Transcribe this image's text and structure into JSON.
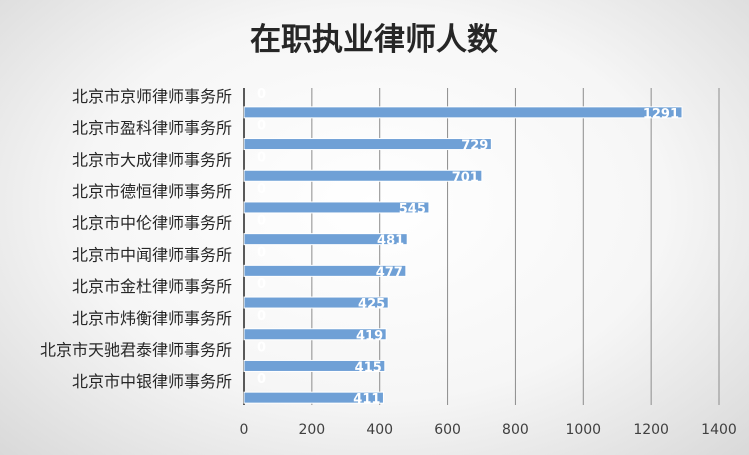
{
  "chart_data": {
    "type": "bar",
    "orientation": "horizontal",
    "title": "在职执业律师人数",
    "categories": [
      "北京市京师律师事务所",
      "北京市盈科律师事务所",
      "北京市大成律师事务所",
      "北京市德恒律师事务所",
      "北京市中伦律师事务所",
      "北京市中闻律师事务所",
      "北京市金杜律师事务所",
      "北京市炜衡律师事务所",
      "北京市天驰君泰律师事务所",
      "北京市中银律师事务所"
    ],
    "series": [
      {
        "values": [
          0,
          0,
          0,
          0,
          0,
          0,
          0,
          0,
          0,
          0
        ]
      },
      {
        "values": [
          1291,
          729,
          701,
          545,
          481,
          477,
          425,
          419,
          415,
          411
        ]
      }
    ],
    "xlim": [
      0,
      1400
    ],
    "xticks": [
      0,
      200,
      400,
      600,
      800,
      1000,
      1200,
      1400
    ],
    "grid": "vertical",
    "legend": "none",
    "colors": {
      "bar": "#6fa0d6",
      "bar_edge": "#ffffff",
      "grid": "#8c8c8c",
      "axis": "#595959"
    }
  }
}
